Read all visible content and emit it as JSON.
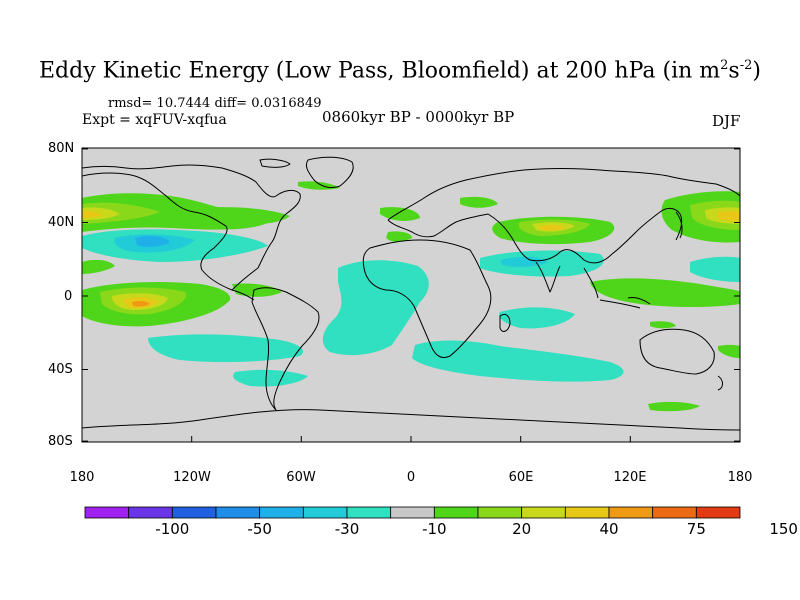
{
  "title": {
    "main": "Eddy Kinetic Energy (Low Pass, Bloomfield) at 200 hPa (in m",
    "sup1": "2",
    "mid": "s",
    "sup2": "-2",
    "end": ")"
  },
  "stats": "rmsd= 10.7444 diff= 0.0316849",
  "experiment": "Expt = xqFUV-xqfua",
  "period": "0860kyr BP - 0000kyr BP",
  "season": "DJF",
  "lat_labels": [
    "80N",
    "40N",
    "0",
    "40S",
    "80S"
  ],
  "lon_labels": [
    "180",
    "120W",
    "60W",
    "0",
    "60E",
    "120E",
    "180"
  ],
  "colorbar": {
    "colors": [
      "#a020f0",
      "#6a35e6",
      "#1f5fe0",
      "#1e8ee8",
      "#20b0e8",
      "#22cbd8",
      "#30e0c0",
      "#c8c8c8",
      "#4fd61a",
      "#8ad81a",
      "#c8d81a",
      "#e8c816",
      "#ee9a14",
      "#ec6a12",
      "#e23a12"
    ],
    "labels": [
      "-100",
      "-50",
      "-30",
      "-10",
      "20",
      "40",
      "75",
      "150"
    ]
  },
  "map_colors": {
    "background": "#d3d3d3",
    "coast": "#000000"
  }
}
